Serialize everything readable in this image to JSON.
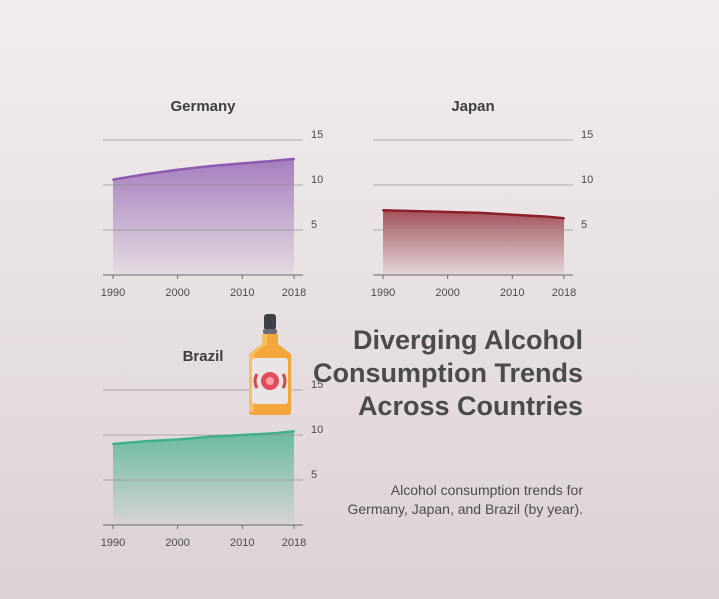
{
  "headline": "Diverging Alcohol Consumption Trends Across Countries",
  "subtitle": "Alcohol consumption trends for Germany, Japan, and Brazil (by year).",
  "chart_data": [
    {
      "type": "area",
      "title": "Germany",
      "x": [
        1990,
        1995,
        2000,
        2005,
        2010,
        2015,
        2018
      ],
      "values": [
        10.6,
        11.2,
        11.7,
        12.1,
        12.4,
        12.7,
        12.9
      ],
      "ylim": [
        0,
        15
      ],
      "yticks": [
        5,
        10,
        15
      ],
      "xticks": [
        1990,
        2000,
        2010,
        2018
      ],
      "color": "#8e5ab1"
    },
    {
      "type": "area",
      "title": "Japan",
      "x": [
        1990,
        1995,
        2000,
        2005,
        2010,
        2015,
        2018
      ],
      "values": [
        7.2,
        7.1,
        7.0,
        6.9,
        6.7,
        6.5,
        6.3
      ],
      "ylim": [
        0,
        15
      ],
      "yticks": [
        5,
        10,
        15
      ],
      "xticks": [
        1990,
        2000,
        2010,
        2018
      ],
      "color": "#8b1f2b"
    },
    {
      "type": "area",
      "title": "Brazil",
      "x": [
        1990,
        1995,
        2000,
        2005,
        2010,
        2015,
        2018
      ],
      "values": [
        9.0,
        9.3,
        9.5,
        9.8,
        10.0,
        10.2,
        10.4
      ],
      "ylim": [
        0,
        15
      ],
      "yticks": [
        5,
        10,
        15
      ],
      "xticks": [
        1990,
        2000,
        2010,
        2018
      ],
      "color": "#3fb089"
    }
  ],
  "icon": "liquor-bottle-icon"
}
